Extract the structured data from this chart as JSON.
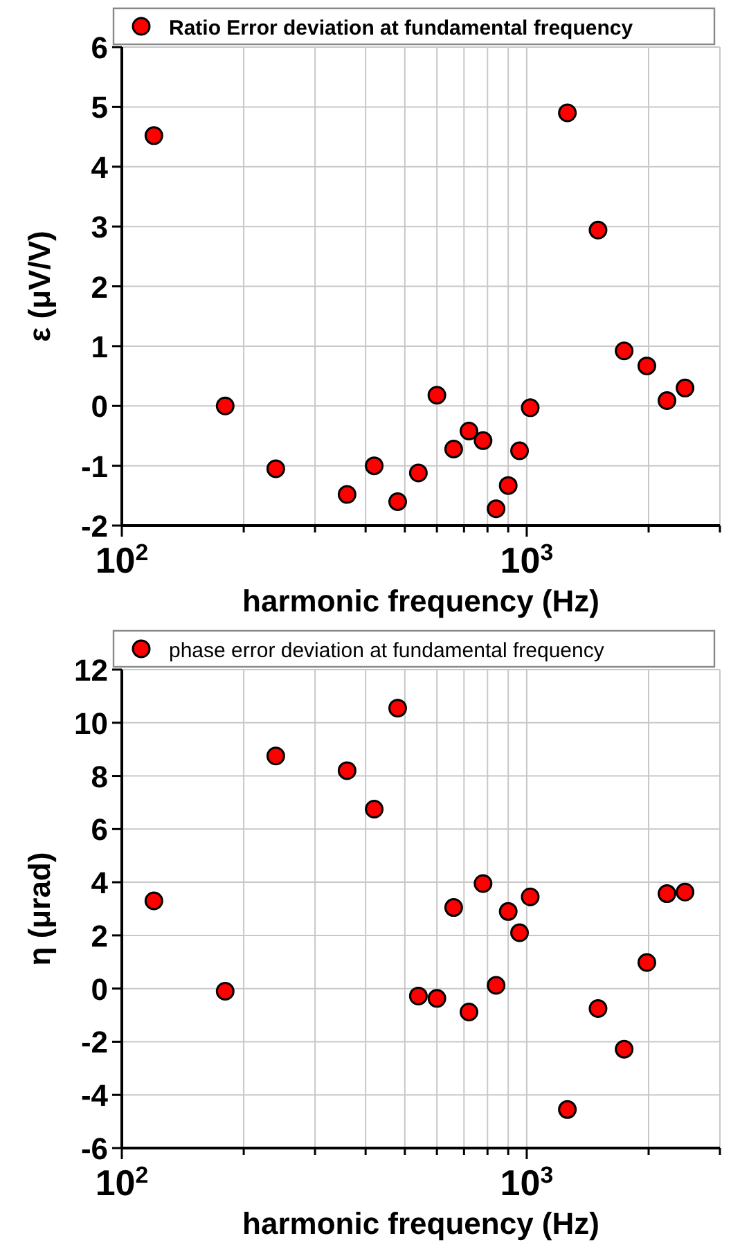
{
  "chart_data": [
    {
      "type": "scatter",
      "xlabel": "harmonic frequency (Hz)",
      "ylabel": "ε (μV/V)",
      "log": "x",
      "grid": true,
      "legend": "top",
      "marker": "circle",
      "x": [
        120,
        180,
        240,
        360,
        420,
        480,
        540,
        600,
        660,
        720,
        780,
        840,
        900,
        960,
        1020,
        1260,
        1500,
        1740,
        1980,
        2220,
        2460
      ],
      "series": [
        {
          "name": "Ratio Error deviation at fundamental frequency",
          "color": "#ff0000",
          "values": [
            4.52,
            0.0,
            -1.05,
            -1.48,
            -1.0,
            -1.6,
            -1.12,
            0.18,
            -0.72,
            -0.42,
            -0.58,
            -1.72,
            -1.33,
            -0.75,
            -0.03,
            4.9,
            2.94,
            0.92,
            0.67,
            0.09,
            0.3
          ]
        }
      ],
      "xlim": [
        100,
        3000
      ],
      "ylim": [
        -2,
        6
      ],
      "xticks": [
        {
          "value": 100,
          "label": "10$^{2}$"
        },
        {
          "value": 200,
          "label": null
        },
        {
          "value": 300,
          "label": null
        },
        {
          "value": 400,
          "label": null
        },
        {
          "value": 500,
          "label": null
        },
        {
          "value": 600,
          "label": null
        },
        {
          "value": 700,
          "label": null
        },
        {
          "value": 800,
          "label": null
        },
        {
          "value": 900,
          "label": null
        },
        {
          "value": 1000,
          "label": "10$^{3}$"
        },
        {
          "value": 2000,
          "label": null
        },
        {
          "value": 3000,
          "label": null
        }
      ],
      "yticks": [
        -2,
        -1,
        0,
        1,
        2,
        3,
        4,
        5,
        6
      ]
    },
    {
      "type": "scatter",
      "xlabel": "harmonic frequency (Hz)",
      "ylabel": "η (μrad)",
      "log": "x",
      "grid": true,
      "legend": "top",
      "marker": "circle",
      "x": [
        120,
        180,
        240,
        360,
        420,
        480,
        540,
        600,
        660,
        720,
        780,
        840,
        900,
        960,
        1020,
        1260,
        1500,
        1740,
        1980,
        2220,
        2460
      ],
      "series": [
        {
          "name": "phase error deviation at fundamental frequency",
          "color": "#ff0000",
          "values": [
            3.3,
            -0.1,
            8.75,
            8.2,
            6.75,
            10.55,
            -0.28,
            -0.37,
            3.05,
            -0.88,
            3.95,
            0.12,
            2.9,
            2.1,
            3.45,
            -4.55,
            -0.75,
            -2.28,
            0.98,
            3.57,
            3.63
          ]
        }
      ],
      "xlim": [
        100,
        3000
      ],
      "ylim": [
        -6,
        12
      ],
      "xticks": [
        {
          "value": 100,
          "label": "10$^{2}$"
        },
        {
          "value": 200,
          "label": null
        },
        {
          "value": 300,
          "label": null
        },
        {
          "value": 400,
          "label": null
        },
        {
          "value": 500,
          "label": null
        },
        {
          "value": 600,
          "label": null
        },
        {
          "value": 700,
          "label": null
        },
        {
          "value": 800,
          "label": null
        },
        {
          "value": 900,
          "label": null
        },
        {
          "value": 1000,
          "label": "10$^{3}$"
        },
        {
          "value": 2000,
          "label": null
        },
        {
          "value": 3000,
          "label": null
        }
      ],
      "yticks": [
        -6,
        -4,
        -2,
        0,
        2,
        4,
        6,
        8,
        10,
        12
      ]
    }
  ]
}
